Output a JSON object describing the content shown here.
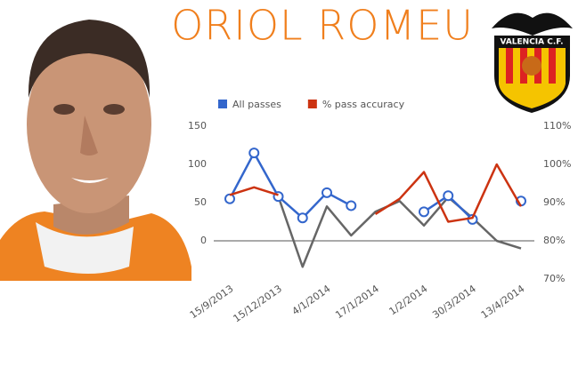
{
  "chart_data": {
    "type": "line",
    "title": "ORIOL ROMEU",
    "categories": [
      "15/9/2013",
      null,
      "15/12/2013",
      null,
      "4/1/2014",
      null,
      "17/1/2014",
      null,
      "1/2/2014",
      null,
      "30/3/2014",
      null,
      "13/4/2014"
    ],
    "series": [
      {
        "name": "All passes",
        "color": "#3366cc",
        "values": [
          55,
          115,
          58,
          30,
          63,
          46,
          null,
          null,
          38,
          59,
          28,
          null,
          52
        ]
      },
      {
        "name": "% pass accuracy",
        "color": "#cc3311",
        "axis": "y2",
        "values": [
          92,
          94,
          92,
          null,
          null,
          null,
          87,
          91,
          98,
          85,
          86,
          100,
          89
        ]
      },
      {
        "color": "#666666",
        "values": [
          null,
          null,
          58,
          -34,
          45,
          7,
          38,
          52,
          20,
          57,
          30,
          0,
          -10
        ]
      }
    ],
    "ylim": [
      -50,
      150
    ],
    "yticks": [
      0,
      50,
      100,
      150
    ],
    "y2lim": [
      70,
      110
    ],
    "y2ticks": [
      {
        "value": 70,
        "label": "70%"
      },
      {
        "value": 80,
        "label": "80%"
      },
      {
        "value": 90,
        "label": "90%"
      },
      {
        "value": 100,
        "label": "100%"
      },
      {
        "value": 110,
        "label": "110%"
      }
    ],
    "legend": "top"
  },
  "logo_text": "VALENCIA C.F."
}
